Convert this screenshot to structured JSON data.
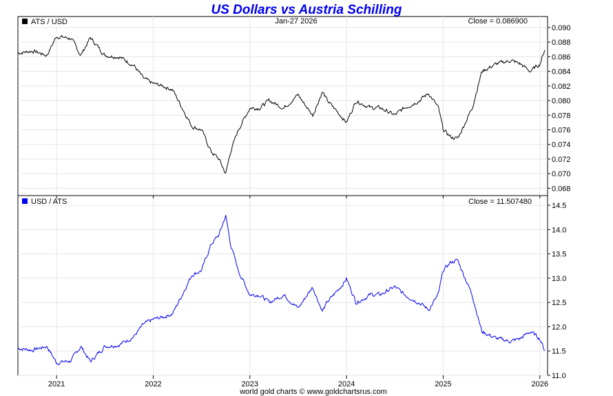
{
  "chart_data": [
    {
      "type": "line",
      "title": "US Dollars vs Austria Schilling",
      "date_label": "Jan-27  2026",
      "legend": "ATS / USD",
      "close_label": "Close = 0.086900",
      "series_color": "#000000",
      "ylim": [
        0.067,
        0.0915
      ],
      "y_ticks": [
        "0.090",
        "0.088",
        "0.086",
        "0.084",
        "0.082",
        "0.080",
        "0.078",
        "0.076",
        "0.074",
        "0.072",
        "0.070",
        "0.068"
      ],
      "x_ticks": [
        "2021",
        "2022",
        "2023",
        "2024",
        "2025",
        "2026"
      ],
      "xlim": [
        2020.6,
        2026.08
      ],
      "series": [
        {
          "name": "ATS / USD",
          "x": [
            2020.6,
            2020.75,
            2020.9,
            2021.0,
            2021.15,
            2021.25,
            2021.35,
            2021.5,
            2021.65,
            2021.8,
            2021.9,
            2022.0,
            2022.1,
            2022.2,
            2022.3,
            2022.4,
            2022.5,
            2022.6,
            2022.68,
            2022.75,
            2022.8,
            2022.88,
            2023.0,
            2023.1,
            2023.2,
            2023.35,
            2023.5,
            2023.55,
            2023.65,
            2023.75,
            2023.8,
            2023.95,
            2024.0,
            2024.1,
            2024.25,
            2024.35,
            2024.5,
            2024.6,
            2024.75,
            2024.85,
            2024.95,
            2025.0,
            2025.08,
            2025.15,
            2025.3,
            2025.4,
            2025.55,
            2025.7,
            2025.8,
            2025.9,
            2026.0,
            2026.05
          ],
          "values": [
            0.0865,
            0.0868,
            0.0862,
            0.0888,
            0.0885,
            0.0862,
            0.0886,
            0.0862,
            0.086,
            0.0848,
            0.083,
            0.0823,
            0.082,
            0.0815,
            0.079,
            0.0765,
            0.076,
            0.073,
            0.072,
            0.07,
            0.073,
            0.076,
            0.079,
            0.079,
            0.08,
            0.079,
            0.0808,
            0.0798,
            0.078,
            0.0812,
            0.08,
            0.0778,
            0.077,
            0.08,
            0.079,
            0.079,
            0.078,
            0.079,
            0.08,
            0.081,
            0.079,
            0.076,
            0.075,
            0.0748,
            0.079,
            0.084,
            0.085,
            0.0855,
            0.085,
            0.084,
            0.085,
            0.0869
          ]
        }
      ]
    },
    {
      "type": "line",
      "legend": "USD / ATS",
      "close_label": "Close = 11.507480",
      "series_color": "#0000ee",
      "ylim": [
        11.0,
        14.7
      ],
      "y_ticks": [
        "14.5",
        "14.0",
        "13.5",
        "13.0",
        "12.5",
        "12.0",
        "11.5",
        "11.0"
      ],
      "x_ticks": [
        "2021",
        "2022",
        "2023",
        "2024",
        "2025",
        "2026"
      ],
      "xlim": [
        2020.6,
        2026.08
      ],
      "series": [
        {
          "name": "USD / ATS",
          "x": [
            2020.6,
            2020.75,
            2020.9,
            2021.0,
            2021.15,
            2021.25,
            2021.35,
            2021.5,
            2021.65,
            2021.8,
            2021.9,
            2022.0,
            2022.1,
            2022.2,
            2022.3,
            2022.4,
            2022.5,
            2022.6,
            2022.68,
            2022.75,
            2022.8,
            2022.88,
            2023.0,
            2023.1,
            2023.2,
            2023.35,
            2023.5,
            2023.55,
            2023.65,
            2023.75,
            2023.8,
            2023.95,
            2024.0,
            2024.1,
            2024.25,
            2024.35,
            2024.5,
            2024.6,
            2024.75,
            2024.85,
            2024.95,
            2025.0,
            2025.08,
            2025.15,
            2025.3,
            2025.4,
            2025.55,
            2025.7,
            2025.8,
            2025.9,
            2026.0,
            2026.05
          ],
          "values": [
            11.56,
            11.52,
            11.6,
            11.26,
            11.3,
            11.6,
            11.28,
            11.6,
            11.63,
            11.8,
            12.05,
            12.15,
            12.2,
            12.27,
            12.66,
            13.07,
            13.16,
            13.7,
            13.89,
            14.29,
            13.7,
            13.16,
            12.66,
            12.66,
            12.5,
            12.66,
            12.38,
            12.53,
            12.82,
            12.32,
            12.5,
            12.85,
            12.99,
            12.5,
            12.66,
            12.66,
            12.82,
            12.66,
            12.5,
            12.35,
            12.66,
            13.16,
            13.33,
            13.37,
            12.66,
            11.9,
            11.76,
            11.7,
            11.76,
            11.9,
            11.76,
            11.51
          ]
        }
      ]
    }
  ],
  "footer": "world gold charts © www.goldchartsrus.com"
}
